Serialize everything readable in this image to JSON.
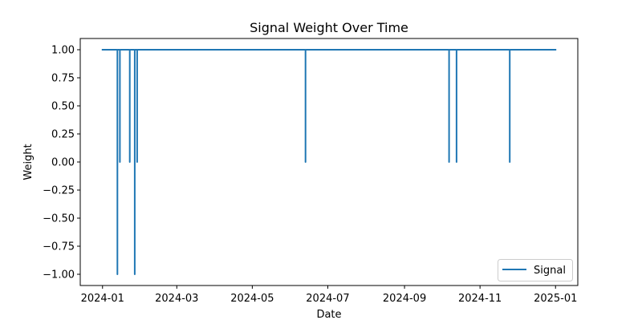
{
  "chart_data": {
    "type": "line",
    "title": "Signal Weight Over Time",
    "xlabel": "Date",
    "ylabel": "Weight",
    "grid": false,
    "legend_position": "lower-right",
    "xlim": [
      "2023-12-14",
      "2025-01-19"
    ],
    "ylim": [
      -1.1,
      1.1
    ],
    "x_ticks": [
      "2024-01",
      "2024-03",
      "2024-05",
      "2024-07",
      "2024-09",
      "2024-11",
      "2025-01"
    ],
    "y_ticks": [
      1.0,
      0.75,
      0.5,
      0.25,
      0.0,
      -0.25,
      -0.5,
      -0.75,
      -1.0
    ],
    "y_tick_labels": [
      "1.00",
      "0.75",
      "0.50",
      "0.25",
      "0.00",
      "−0.25",
      "−0.50",
      "−0.75",
      "−1.00"
    ],
    "series": [
      {
        "name": "Signal",
        "color": "#1f77b4",
        "points": [
          [
            "2024-01-01",
            1
          ],
          [
            "2024-01-13",
            1
          ],
          [
            "2024-01-13",
            -1
          ],
          [
            "2024-01-13",
            1
          ],
          [
            "2024-01-15",
            1
          ],
          [
            "2024-01-15",
            0
          ],
          [
            "2024-01-15",
            1
          ],
          [
            "2024-01-23",
            1
          ],
          [
            "2024-01-23",
            0
          ],
          [
            "2024-01-23",
            1
          ],
          [
            "2024-01-27",
            1
          ],
          [
            "2024-01-27",
            -1
          ],
          [
            "2024-01-27",
            1
          ],
          [
            "2024-01-29",
            1
          ],
          [
            "2024-01-29",
            0
          ],
          [
            "2024-01-29",
            1
          ],
          [
            "2024-06-13",
            1
          ],
          [
            "2024-06-13",
            0
          ],
          [
            "2024-06-13",
            1
          ],
          [
            "2024-10-07",
            1
          ],
          [
            "2024-10-07",
            0
          ],
          [
            "2024-10-07",
            1
          ],
          [
            "2024-10-13",
            1
          ],
          [
            "2024-10-13",
            0
          ],
          [
            "2024-10-13",
            1
          ],
          [
            "2024-11-25",
            1
          ],
          [
            "2024-11-25",
            0
          ],
          [
            "2024-11-25",
            1
          ],
          [
            "2025-01-01",
            1
          ]
        ]
      }
    ]
  }
}
